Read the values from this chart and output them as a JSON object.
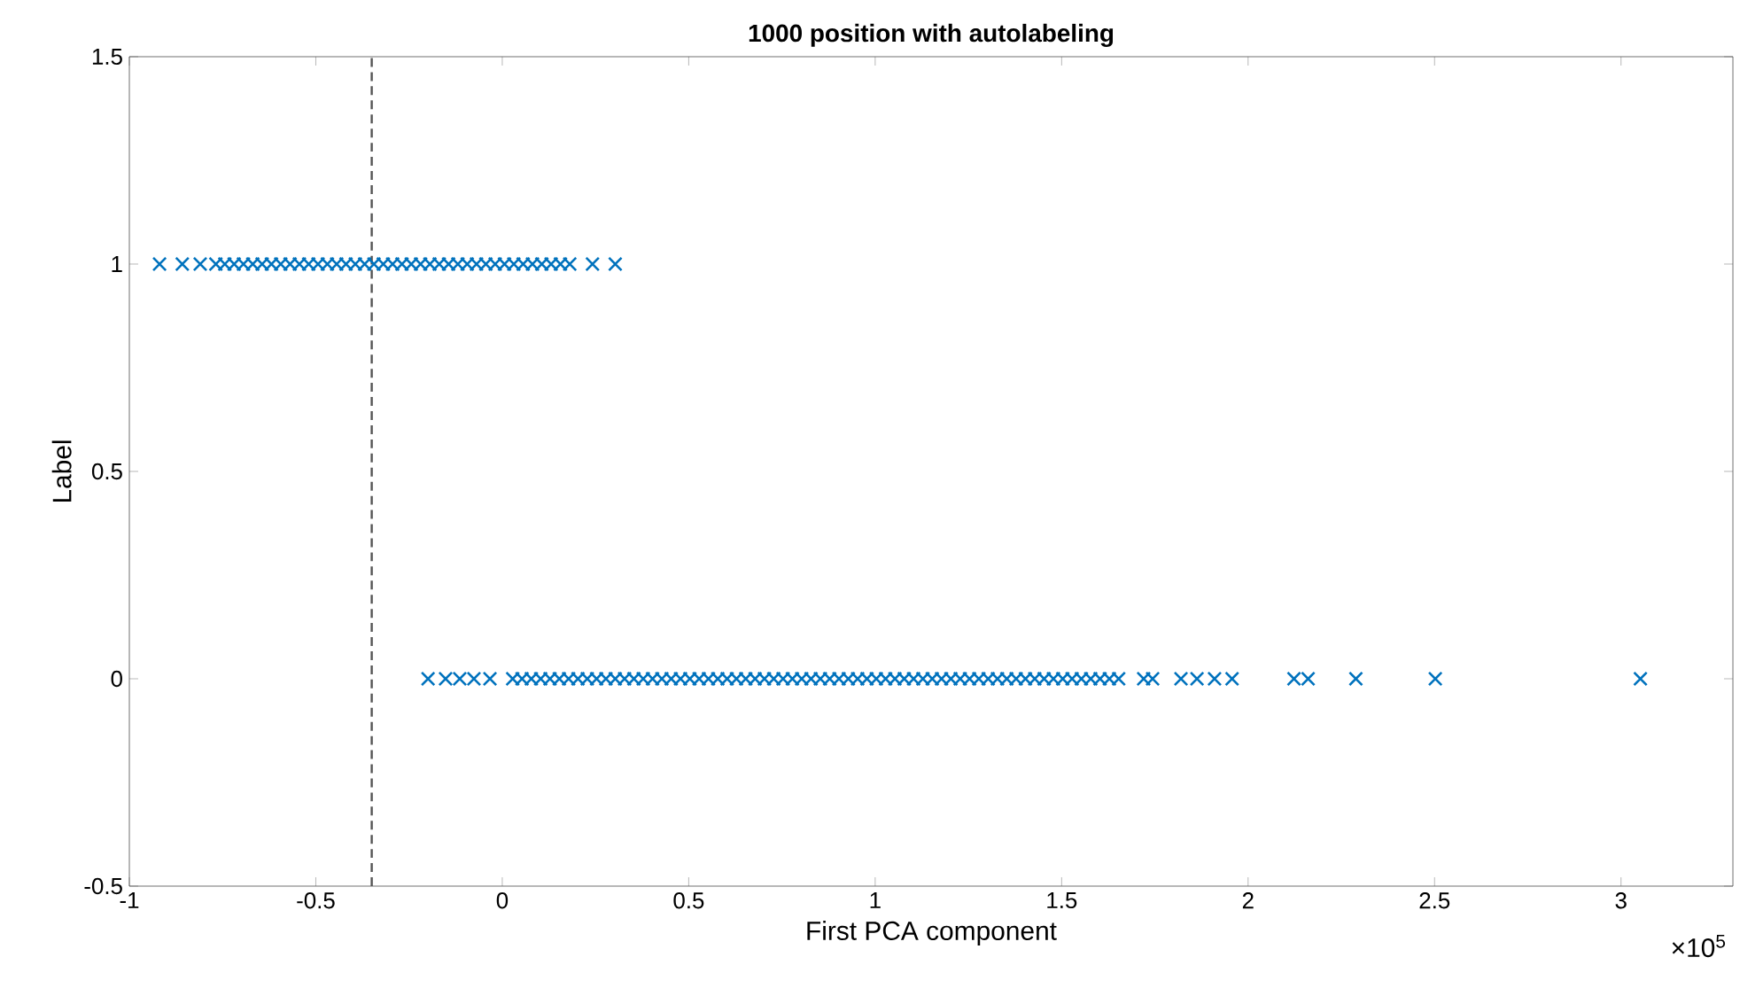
{
  "chart_data": {
    "type": "scatter",
    "title": "1000 position with autolabeling",
    "xlabel": "First PCA component",
    "ylabel": "Label",
    "annotations": [
      "×10$^{5}$"
    ],
    "xlim": [
      -1,
      3.3
    ],
    "ylim": [
      -0.5,
      1.5
    ],
    "xticks": [
      -1,
      -0.5,
      0,
      0.5,
      1,
      1.5,
      2,
      2.5,
      3
    ],
    "yticks": [
      -0.5,
      0,
      0.5,
      1,
      1.5
    ],
    "grid": false,
    "marker": "cross",
    "ref_lines": [
      {
        "axis": "x",
        "value": -0.35,
        "color": "#555555",
        "line_style": "dashed"
      }
    ],
    "series": [
      {
        "color": "#0072bd",
        "x": [
          -0.919,
          -0.858,
          -0.81,
          -0.768,
          -0.744,
          -0.719,
          -0.694,
          -0.669,
          -0.644,
          -0.619,
          -0.594,
          -0.569,
          -0.544,
          -0.519,
          -0.494,
          -0.469,
          -0.444,
          -0.419,
          -0.394,
          -0.369,
          -0.344,
          -0.319,
          -0.294,
          -0.269,
          -0.244,
          -0.219,
          -0.194,
          -0.169,
          -0.144,
          -0.119,
          -0.094,
          -0.069,
          -0.044,
          -0.019,
          0.006,
          0.031,
          0.056,
          0.081,
          0.106,
          0.131,
          0.156,
          0.181,
          0.242,
          0.303,
          -0.199,
          -0.152,
          -0.114,
          -0.076,
          -0.033,
          0.028,
          0.053,
          0.078,
          0.103,
          0.128,
          0.153,
          0.178,
          0.203,
          0.228,
          0.253,
          0.278,
          0.303,
          0.328,
          0.353,
          0.378,
          0.403,
          0.428,
          0.453,
          0.478,
          0.503,
          0.528,
          0.553,
          0.578,
          0.603,
          0.628,
          0.653,
          0.678,
          0.703,
          0.728,
          0.753,
          0.778,
          0.803,
          0.828,
          0.853,
          0.878,
          0.903,
          0.928,
          0.953,
          0.978,
          1.003,
          1.028,
          1.053,
          1.078,
          1.103,
          1.128,
          1.153,
          1.178,
          1.203,
          1.228,
          1.253,
          1.278,
          1.303,
          1.328,
          1.353,
          1.378,
          1.403,
          1.428,
          1.453,
          1.478,
          1.503,
          1.528,
          1.553,
          1.578,
          1.603,
          1.628,
          1.653,
          1.72,
          1.744,
          1.82,
          1.863,
          1.91,
          1.957,
          2.123,
          2.161,
          2.289,
          2.502,
          3.052
        ],
        "values": [
          1,
          1,
          1,
          1,
          1,
          1,
          1,
          1,
          1,
          1,
          1,
          1,
          1,
          1,
          1,
          1,
          1,
          1,
          1,
          1,
          1,
          1,
          1,
          1,
          1,
          1,
          1,
          1,
          1,
          1,
          1,
          1,
          1,
          1,
          1,
          1,
          1,
          1,
          1,
          1,
          1,
          1,
          1,
          1,
          0,
          0,
          0,
          0,
          0,
          0,
          0,
          0,
          0,
          0,
          0,
          0,
          0,
          0,
          0,
          0,
          0,
          0,
          0,
          0,
          0,
          0,
          0,
          0,
          0,
          0,
          0,
          0,
          0,
          0,
          0,
          0,
          0,
          0,
          0,
          0,
          0,
          0,
          0,
          0,
          0,
          0,
          0,
          0,
          0,
          0,
          0,
          0,
          0,
          0,
          0,
          0,
          0,
          0,
          0,
          0,
          0,
          0,
          0,
          0,
          0,
          0,
          0,
          0,
          0,
          0,
          0,
          0,
          0,
          0,
          0,
          0,
          0,
          0,
          0,
          0,
          0,
          0,
          0,
          0,
          0,
          0
        ]
      }
    ]
  }
}
